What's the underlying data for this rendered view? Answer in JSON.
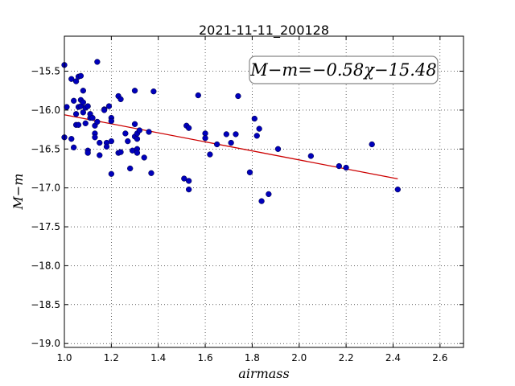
{
  "chart_data": {
    "type": "scatter",
    "title": "2021-11-11_200128",
    "xlabel": "airmass",
    "ylabel": "M−m",
    "xlim": [
      1.0,
      2.7
    ],
    "ylim": [
      -19.05,
      -15.05
    ],
    "x_ticks": [
      1.0,
      1.2,
      1.4,
      1.6,
      1.8,
      2.0,
      2.2,
      2.4,
      2.6
    ],
    "x_tick_labels": [
      "1.0",
      "1.2",
      "1.4",
      "1.6",
      "1.8",
      "2.0",
      "2.2",
      "2.4",
      "2.6"
    ],
    "y_ticks": [
      -15.5,
      -16.0,
      -16.5,
      -17.0,
      -17.5,
      -18.0,
      -18.5,
      -19.0
    ],
    "y_tick_labels": [
      "−15.5",
      "−16.0",
      "−16.5",
      "−17.0",
      "−17.5",
      "−18.0",
      "−18.5",
      "−19.0"
    ],
    "grid": true,
    "annotation": "M−m=−0.58χ−15.48",
    "fit_line": {
      "slope": -0.58,
      "intercept": -15.48,
      "x_range": [
        1.0,
        2.42
      ],
      "color": "#cc0000"
    },
    "point_color": "#0000bb",
    "points": [
      [
        1.0,
        -15.42
      ],
      [
        1.0,
        -16.35
      ],
      [
        1.01,
        -15.96
      ],
      [
        1.03,
        -15.6
      ],
      [
        1.03,
        -16.37
      ],
      [
        1.04,
        -15.88
      ],
      [
        1.04,
        -16.48
      ],
      [
        1.05,
        -15.63
      ],
      [
        1.05,
        -16.05
      ],
      [
        1.05,
        -16.19
      ],
      [
        1.06,
        -15.57
      ],
      [
        1.06,
        -15.96
      ],
      [
        1.06,
        -16.19
      ],
      [
        1.07,
        -15.56
      ],
      [
        1.07,
        -15.87
      ],
      [
        1.07,
        -15.95
      ],
      [
        1.08,
        -15.9
      ],
      [
        1.08,
        -16.03
      ],
      [
        1.08,
        -15.75
      ],
      [
        1.09,
        -15.97
      ],
      [
        1.09,
        -16.17
      ],
      [
        1.1,
        -15.95
      ],
      [
        1.1,
        -16.52
      ],
      [
        1.1,
        -16.55
      ],
      [
        1.11,
        -16.1
      ],
      [
        1.11,
        -16.05
      ],
      [
        1.12,
        -16.1
      ],
      [
        1.13,
        -16.3
      ],
      [
        1.13,
        -16.35
      ],
      [
        1.13,
        -16.2
      ],
      [
        1.14,
        -15.38
      ],
      [
        1.14,
        -16.15
      ],
      [
        1.15,
        -16.42
      ],
      [
        1.15,
        -16.58
      ],
      [
        1.17,
        -15.99
      ],
      [
        1.17,
        -16.0
      ],
      [
        1.18,
        -16.42
      ],
      [
        1.18,
        -16.47
      ],
      [
        1.19,
        -15.95
      ],
      [
        1.2,
        -16.4
      ],
      [
        1.2,
        -16.1
      ],
      [
        1.2,
        -16.14
      ],
      [
        1.2,
        -16.82
      ],
      [
        1.23,
        -15.82
      ],
      [
        1.23,
        -16.55
      ],
      [
        1.24,
        -15.86
      ],
      [
        1.24,
        -16.54
      ],
      [
        1.26,
        -16.3
      ],
      [
        1.27,
        -16.4
      ],
      [
        1.28,
        -16.75
      ],
      [
        1.29,
        -16.52
      ],
      [
        1.3,
        -16.34
      ],
      [
        1.3,
        -15.75
      ],
      [
        1.3,
        -16.18
      ],
      [
        1.31,
        -16.3
      ],
      [
        1.31,
        -16.5
      ],
      [
        1.31,
        -16.37
      ],
      [
        1.31,
        -16.55
      ],
      [
        1.32,
        -16.26
      ],
      [
        1.34,
        -16.61
      ],
      [
        1.36,
        -16.28
      ],
      [
        1.37,
        -16.81
      ],
      [
        1.38,
        -15.76
      ],
      [
        1.51,
        -16.88
      ],
      [
        1.52,
        -16.2
      ],
      [
        1.53,
        -16.23
      ],
      [
        1.53,
        -16.91
      ],
      [
        1.53,
        -17.02
      ],
      [
        1.57,
        -15.81
      ],
      [
        1.6,
        -16.3
      ],
      [
        1.6,
        -16.36
      ],
      [
        1.62,
        -16.57
      ],
      [
        1.65,
        -16.44
      ],
      [
        1.69,
        -16.31
      ],
      [
        1.71,
        -16.42
      ],
      [
        1.73,
        -16.31
      ],
      [
        1.74,
        -15.82
      ],
      [
        1.79,
        -16.8
      ],
      [
        1.81,
        -16.11
      ],
      [
        1.82,
        -16.33
      ],
      [
        1.83,
        -16.24
      ],
      [
        1.84,
        -17.17
      ],
      [
        1.87,
        -17.08
      ],
      [
        1.91,
        -16.5
      ],
      [
        2.05,
        -16.59
      ],
      [
        2.17,
        -16.72
      ],
      [
        2.2,
        -16.74
      ],
      [
        2.31,
        -16.44
      ],
      [
        2.42,
        -17.02
      ]
    ]
  }
}
